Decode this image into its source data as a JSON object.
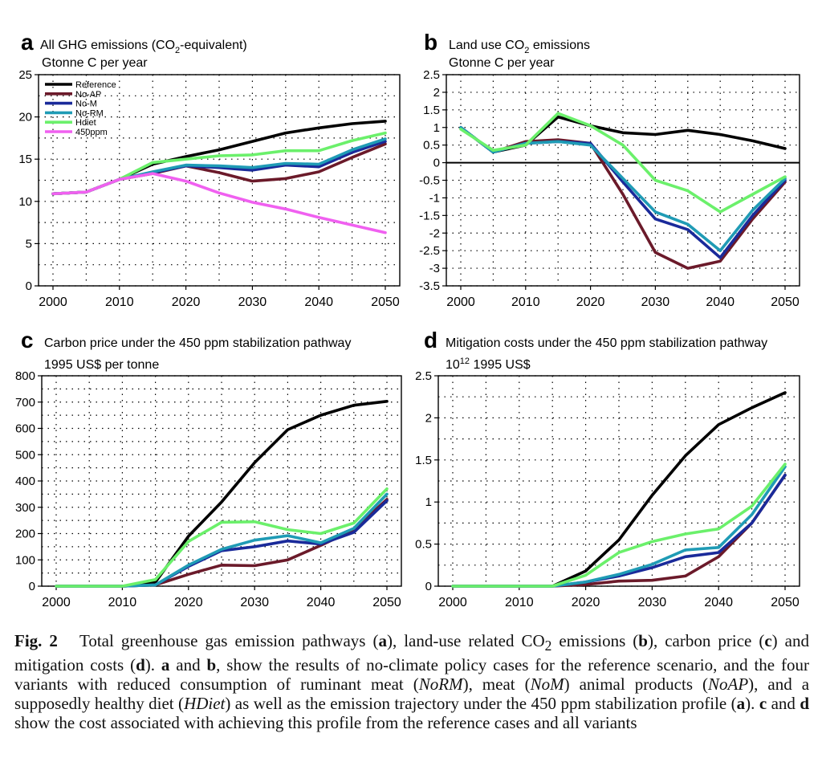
{
  "chart_data": [
    {
      "type": "line",
      "panel_letter": "a",
      "title_pre": "All GHG emissions (CO",
      "title_sub": "2",
      "title_post": "-equivalent)",
      "ylabel": "Gtonne C per year",
      "x": [
        2000,
        2005,
        2010,
        2015,
        2020,
        2025,
        2030,
        2035,
        2040,
        2045,
        2050
      ],
      "xticks": [
        "2000",
        "2010",
        "2020",
        "2030",
        "2040",
        "2050"
      ],
      "ylim": [
        0,
        25
      ],
      "yticks": [
        "0",
        "5",
        "10",
        "15",
        "20",
        "25"
      ],
      "ytick_values": [
        0,
        5,
        10,
        15,
        20,
        25
      ],
      "grid": true,
      "legend_position": "top-left",
      "series": [
        {
          "name": "Reference",
          "color": "#000000",
          "values": [
            10.9,
            11.1,
            12.6,
            14.4,
            15.3,
            16.1,
            17.1,
            18.1,
            18.7,
            19.2,
            19.5
          ]
        },
        {
          "name": "No-AP",
          "color": "#6b1a2a",
          "values": [
            10.9,
            11.1,
            12.6,
            13.3,
            14.2,
            13.4,
            12.4,
            12.7,
            13.5,
            15.2,
            16.8
          ]
        },
        {
          "name": "No-M",
          "color": "#1a2a9a",
          "values": [
            10.9,
            11.1,
            12.6,
            13.4,
            14.2,
            14.0,
            13.7,
            14.3,
            14.1,
            15.8,
            17.1
          ]
        },
        {
          "name": "No-RM",
          "color": "#1f9bb5",
          "values": [
            10.9,
            11.1,
            12.6,
            13.5,
            14.3,
            14.2,
            14.0,
            14.5,
            14.4,
            16.1,
            17.4
          ]
        },
        {
          "name": "Hdiet",
          "color": "#6bf06b",
          "values": [
            10.9,
            11.1,
            12.6,
            14.6,
            15.0,
            15.4,
            15.5,
            16.0,
            16.0,
            17.2,
            18.1
          ]
        },
        {
          "name": "450ppm",
          "color": "#f060f0",
          "values": [
            10.9,
            11.1,
            12.6,
            13.3,
            12.4,
            11.0,
            9.9,
            9.1,
            8.1,
            7.2,
            6.3
          ]
        }
      ]
    },
    {
      "type": "line",
      "panel_letter": "b",
      "title_pre": "Land use CO",
      "title_sub": "2",
      "title_post": " emissions",
      "ylabel": "Gtonne C per year",
      "x": [
        2000,
        2005,
        2010,
        2015,
        2020,
        2025,
        2030,
        2035,
        2040,
        2045,
        2050
      ],
      "xticks": [
        "2000",
        "2010",
        "2020",
        "2030",
        "2040",
        "2050"
      ],
      "ylim": [
        -3.5,
        2.5
      ],
      "yticks": [
        "2.5",
        "2",
        "1.5",
        "1",
        "0.5",
        "0",
        "-0.5",
        "-1",
        "-1.5",
        "-2",
        "-2.5",
        "-3",
        "-3.5"
      ],
      "ytick_values": [
        2.5,
        2,
        1.5,
        1,
        0.5,
        0,
        -0.5,
        -1,
        -1.5,
        -2,
        -2.5,
        -3,
        -3.5
      ],
      "zero_line": true,
      "grid": true,
      "series": [
        {
          "name": "Reference",
          "color": "#000000",
          "values": [
            1.0,
            0.3,
            0.5,
            1.3,
            1.05,
            0.85,
            0.8,
            0.92,
            0.8,
            0.62,
            0.4
          ]
        },
        {
          "name": "No-AP",
          "color": "#6b1a2a",
          "values": [
            1.0,
            0.3,
            0.6,
            0.65,
            0.55,
            -0.9,
            -2.55,
            -3.0,
            -2.8,
            -1.6,
            -0.55
          ]
        },
        {
          "name": "No-M",
          "color": "#1a2a9a",
          "values": [
            1.0,
            0.3,
            0.55,
            0.6,
            0.55,
            -0.55,
            -1.6,
            -1.9,
            -2.7,
            -1.5,
            -0.5
          ]
        },
        {
          "name": "No-RM",
          "color": "#1f9bb5",
          "values": [
            1.0,
            0.3,
            0.55,
            0.6,
            0.5,
            -0.45,
            -1.4,
            -1.75,
            -2.5,
            -1.35,
            -0.45
          ]
        },
        {
          "name": "Hdiet",
          "color": "#6bf06b",
          "values": [
            0.95,
            0.35,
            0.5,
            1.4,
            1.05,
            0.5,
            -0.5,
            -0.8,
            -1.4,
            -0.9,
            -0.4
          ]
        }
      ]
    },
    {
      "type": "line",
      "panel_letter": "c",
      "title_pre": "Carbon price under the 450 ppm stabilization pathway",
      "title_sub": "",
      "title_post": "",
      "ylabel": "1995 US$ per tonne",
      "x": [
        2000,
        2005,
        2010,
        2015,
        2020,
        2025,
        2030,
        2035,
        2040,
        2045,
        2050
      ],
      "xticks": [
        "2000",
        "2010",
        "2020",
        "2030",
        "2040",
        "2050"
      ],
      "ylim": [
        0,
        800
      ],
      "yticks": [
        "0",
        "100",
        "200",
        "300",
        "400",
        "500",
        "600",
        "700",
        "800"
      ],
      "ytick_values": [
        0,
        100,
        200,
        300,
        400,
        500,
        600,
        700,
        800
      ],
      "grid": true,
      "series": [
        {
          "name": "Reference",
          "color": "#000000",
          "values": [
            0,
            0,
            0,
            15,
            190,
            320,
            470,
            595,
            650,
            688,
            703
          ]
        },
        {
          "name": "No-AP",
          "color": "#6b1a2a",
          "values": [
            0,
            0,
            0,
            5,
            45,
            80,
            78,
            100,
            155,
            215,
            330
          ]
        },
        {
          "name": "No-M",
          "color": "#1a2a9a",
          "values": [
            0,
            0,
            0,
            5,
            75,
            135,
            150,
            172,
            160,
            205,
            325
          ]
        },
        {
          "name": "No-RM",
          "color": "#1f9bb5",
          "values": [
            0,
            0,
            0,
            5,
            80,
            140,
            175,
            192,
            165,
            220,
            350
          ]
        },
        {
          "name": "Hdiet",
          "color": "#6bf06b",
          "values": [
            0,
            0,
            0,
            25,
            170,
            243,
            245,
            215,
            200,
            240,
            370
          ]
        }
      ]
    },
    {
      "type": "line",
      "panel_letter": "d",
      "title_pre": "Mitigation costs under the 450 ppm stabilization pathway",
      "title_sub": "",
      "title_post": "",
      "ylabel": "10",
      "ylabel_sup": "12",
      "ylabel_post": " 1995 US$",
      "x": [
        2000,
        2005,
        2010,
        2015,
        2020,
        2025,
        2030,
        2035,
        2040,
        2045,
        2050
      ],
      "xticks": [
        "2000",
        "2010",
        "2020",
        "2030",
        "2040",
        "2050"
      ],
      "ylim": [
        0,
        2.5
      ],
      "yticks": [
        "0",
        "0.5",
        "1",
        "1.5",
        "2",
        "2.5"
      ],
      "ytick_values": [
        0,
        0.5,
        1,
        1.5,
        2,
        2.5
      ],
      "grid": true,
      "series": [
        {
          "name": "Reference",
          "color": "#000000",
          "values": [
            0,
            0,
            0,
            0,
            0.18,
            0.55,
            1.08,
            1.55,
            1.92,
            2.12,
            2.3
          ]
        },
        {
          "name": "No-AP",
          "color": "#6b1a2a",
          "values": [
            0,
            0,
            0,
            0,
            0.02,
            0.06,
            0.07,
            0.12,
            0.35,
            0.75,
            1.32
          ]
        },
        {
          "name": "No-M",
          "color": "#1a2a9a",
          "values": [
            0,
            0,
            0,
            0,
            0.05,
            0.12,
            0.22,
            0.35,
            0.4,
            0.75,
            1.32
          ]
        },
        {
          "name": "No-RM",
          "color": "#1f9bb5",
          "values": [
            0,
            0,
            0,
            0,
            0.05,
            0.14,
            0.26,
            0.43,
            0.46,
            0.85,
            1.42
          ]
        },
        {
          "name": "Hdiet",
          "color": "#6bf06b",
          "values": [
            0,
            0,
            0,
            0,
            0.13,
            0.4,
            0.53,
            0.62,
            0.68,
            0.95,
            1.45
          ]
        }
      ]
    }
  ],
  "caption": {
    "label": "Fig. 2",
    "s1": "Total greenhouse gas emission pathways (",
    "a": "a",
    "s2": "), land-use related CO",
    "sub2": "2",
    "s3": " emissions (",
    "b": "b",
    "s4": "), carbon price (",
    "c": "c",
    "s5": ") and mitigation costs (",
    "d": "d",
    "s6": "). ",
    "a2": "a",
    "s7": " and ",
    "b2": "b",
    "s8": ", show the results of no-climate policy cases for the reference scenario, and the four variants with reduced consumption of ruminant meat (",
    "norm": "NoRM",
    "s9": "), meat (",
    "nom": "NoM",
    "s10": ") animal products (",
    "noap": "NoAP",
    "s11": "), and a supposedly healthy diet (",
    "hdiet": "HDiet",
    "s12": ") as well as the emission trajectory under the 450 ppm stabilization profile (",
    "a3": "a",
    "s13": "). ",
    "c2": "c",
    "s14": " and ",
    "d2": "d",
    "s15": " show the cost associated with achieving this profile from the reference cases and all variants"
  }
}
